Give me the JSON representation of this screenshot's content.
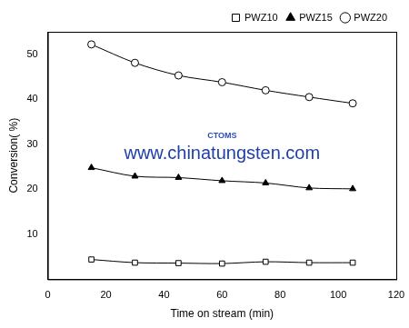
{
  "chart_data": {
    "type": "line",
    "x_label": "Time on stream (min)",
    "y_label": "Conversion( %)",
    "annotations": [
      "CTOMS",
      "www.chinatungsten.com"
    ],
    "x": [
      15,
      30,
      45,
      60,
      75,
      90,
      105
    ],
    "series": [
      {
        "name": "PWZ10",
        "color": "#000000",
        "marker": "square",
        "values": [
          4.4,
          3.7,
          3.6,
          3.5,
          3.9,
          3.7,
          3.7
        ]
      },
      {
        "name": "PWZ15",
        "color": "#000000",
        "marker": "triangle",
        "values": [
          24.8,
          22.9,
          22.6,
          21.9,
          21.4,
          20.3,
          20.1
        ]
      },
      {
        "name": "PWZ20",
        "color": "#000000",
        "marker": "circle",
        "values": [
          52.2,
          48.1,
          45.3,
          43.8,
          42.0,
          40.5,
          39.1
        ]
      }
    ],
    "xlim": [
      0,
      120
    ],
    "xticks": [
      0,
      20,
      40,
      60,
      80,
      100,
      120
    ],
    "ylim": [
      0,
      55
    ],
    "yticks": [
      10,
      20,
      30,
      40,
      50
    ],
    "grid": false,
    "legend": "top-right"
  }
}
